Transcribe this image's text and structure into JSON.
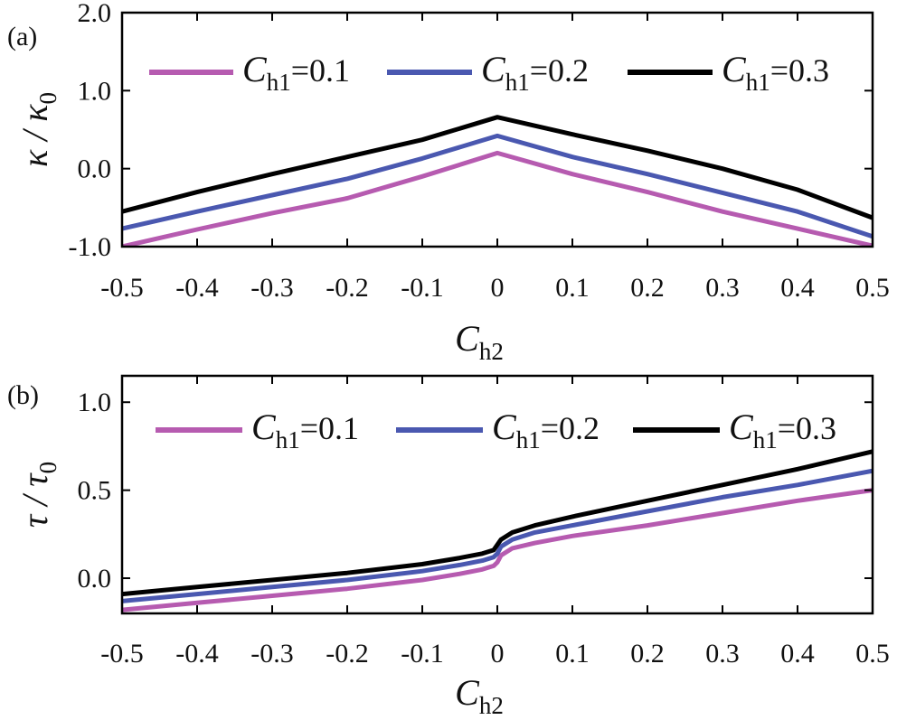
{
  "colors": {
    "magenta": "#b65bb0",
    "blue": "#4a58b0",
    "black": "#000000",
    "axis": "#000000"
  },
  "chart_data": [
    {
      "panel_label": "(a)",
      "type": "line",
      "ylabel": {
        "main": "κ / κ",
        "sub": "0"
      },
      "xlabel": {
        "main": "C",
        "sub": "h2"
      },
      "xlim": [
        -0.5,
        0.5
      ],
      "ylim": [
        -1.0,
        2.0
      ],
      "xticks": [
        "-0.5",
        "-0.4",
        "-0.3",
        "-0.2",
        "-0.1",
        "0",
        "0.1",
        "0.2",
        "0.3",
        "0.4",
        "0.5"
      ],
      "yticks": [
        "-1.0",
        "0.0",
        "1.0",
        "2.0"
      ],
      "legend_position": "top",
      "series": [
        {
          "name": "C_h1=0.1",
          "legend_var": "C",
          "legend_sub": "h1",
          "legend_val": "=0.1",
          "color": "#b65bb0",
          "x": [
            -0.5,
            -0.4,
            -0.3,
            -0.2,
            -0.1,
            0.0,
            0.1,
            0.2,
            0.3,
            0.4,
            0.5
          ],
          "y": [
            -1.0,
            -0.78,
            -0.57,
            -0.38,
            -0.1,
            0.2,
            -0.07,
            -0.3,
            -0.55,
            -0.77,
            -0.99
          ]
        },
        {
          "name": "C_h1=0.2",
          "legend_var": "C",
          "legend_sub": "h1",
          "legend_val": "=0.2",
          "color": "#4a58b0",
          "x": [
            -0.5,
            -0.4,
            -0.3,
            -0.2,
            -0.1,
            0.0,
            0.1,
            0.2,
            0.3,
            0.4,
            0.5
          ],
          "y": [
            -0.77,
            -0.55,
            -0.34,
            -0.13,
            0.13,
            0.42,
            0.15,
            -0.07,
            -0.31,
            -0.55,
            -0.87
          ]
        },
        {
          "name": "C_h1=0.3",
          "legend_var": "C",
          "legend_sub": "h1",
          "legend_val": "=0.3",
          "color": "#000000",
          "x": [
            -0.5,
            -0.4,
            -0.3,
            -0.2,
            -0.1,
            0.0,
            0.1,
            0.2,
            0.3,
            0.4,
            0.5
          ],
          "y": [
            -0.55,
            -0.3,
            -0.07,
            0.15,
            0.37,
            0.66,
            0.44,
            0.23,
            0.0,
            -0.27,
            -0.63
          ]
        }
      ]
    },
    {
      "panel_label": "(b)",
      "type": "line",
      "ylabel": {
        "main": "τ / τ",
        "sub": "0"
      },
      "xlabel": {
        "main": "C",
        "sub": "h2"
      },
      "xlim": [
        -0.5,
        0.5
      ],
      "ylim": [
        -0.2,
        1.15
      ],
      "xticks": [
        "-0.5",
        "-0.4",
        "-0.3",
        "-0.2",
        "-0.1",
        "0",
        "0.1",
        "0.2",
        "0.3",
        "0.4",
        "0.5"
      ],
      "yticks": [
        "0.0",
        "0.5",
        "1.0"
      ],
      "legend_position": "top",
      "series": [
        {
          "name": "C_h1=0.1",
          "legend_var": "C",
          "legend_sub": "h1",
          "legend_val": "=0.1",
          "color": "#b65bb0",
          "x": [
            -0.5,
            -0.4,
            -0.3,
            -0.2,
            -0.1,
            -0.05,
            -0.02,
            -0.005,
            0.0,
            0.005,
            0.02,
            0.05,
            0.1,
            0.2,
            0.3,
            0.4,
            0.5
          ],
          "y": [
            -0.18,
            -0.14,
            -0.1,
            -0.06,
            -0.01,
            0.025,
            0.05,
            0.07,
            0.09,
            0.13,
            0.17,
            0.2,
            0.24,
            0.3,
            0.37,
            0.44,
            0.5
          ]
        },
        {
          "name": "C_h1=0.2",
          "legend_var": "C",
          "legend_sub": "h1",
          "legend_val": "=0.2",
          "color": "#4a58b0",
          "x": [
            -0.5,
            -0.4,
            -0.3,
            -0.2,
            -0.1,
            -0.05,
            -0.02,
            -0.005,
            0.0,
            0.005,
            0.02,
            0.05,
            0.1,
            0.2,
            0.3,
            0.4,
            0.5
          ],
          "y": [
            -0.13,
            -0.09,
            -0.05,
            -0.01,
            0.04,
            0.075,
            0.1,
            0.12,
            0.14,
            0.18,
            0.22,
            0.26,
            0.3,
            0.38,
            0.46,
            0.53,
            0.61
          ]
        },
        {
          "name": "C_h1=0.3",
          "legend_var": "C",
          "legend_sub": "h1",
          "legend_val": "=0.3",
          "color": "#000000",
          "x": [
            -0.5,
            -0.4,
            -0.3,
            -0.2,
            -0.1,
            -0.05,
            -0.02,
            -0.005,
            0.0,
            0.005,
            0.02,
            0.05,
            0.1,
            0.2,
            0.3,
            0.4,
            0.5
          ],
          "y": [
            -0.09,
            -0.05,
            -0.01,
            0.03,
            0.08,
            0.115,
            0.14,
            0.16,
            0.19,
            0.22,
            0.26,
            0.3,
            0.35,
            0.44,
            0.53,
            0.62,
            0.72
          ]
        }
      ]
    }
  ]
}
